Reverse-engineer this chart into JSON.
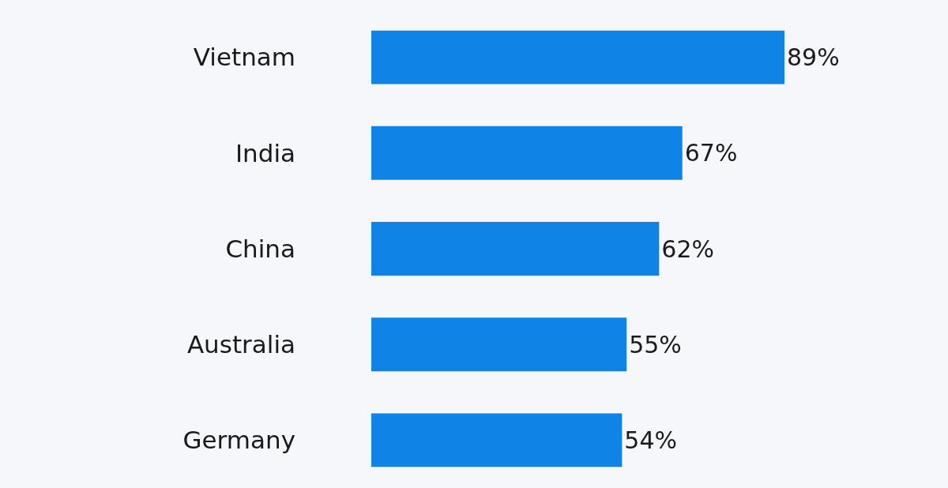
{
  "chart_data": {
    "type": "bar",
    "orientation": "horizontal",
    "categories": [
      "Vietnam",
      "India",
      "China",
      "Australia",
      "Germany"
    ],
    "values": [
      89,
      67,
      62,
      55,
      54
    ],
    "value_labels": [
      "89%",
      "67%",
      "62%",
      "55%",
      "54%"
    ],
    "color": "#0f84e6",
    "tick_labels": "y",
    "grid": false,
    "legend": false
  }
}
